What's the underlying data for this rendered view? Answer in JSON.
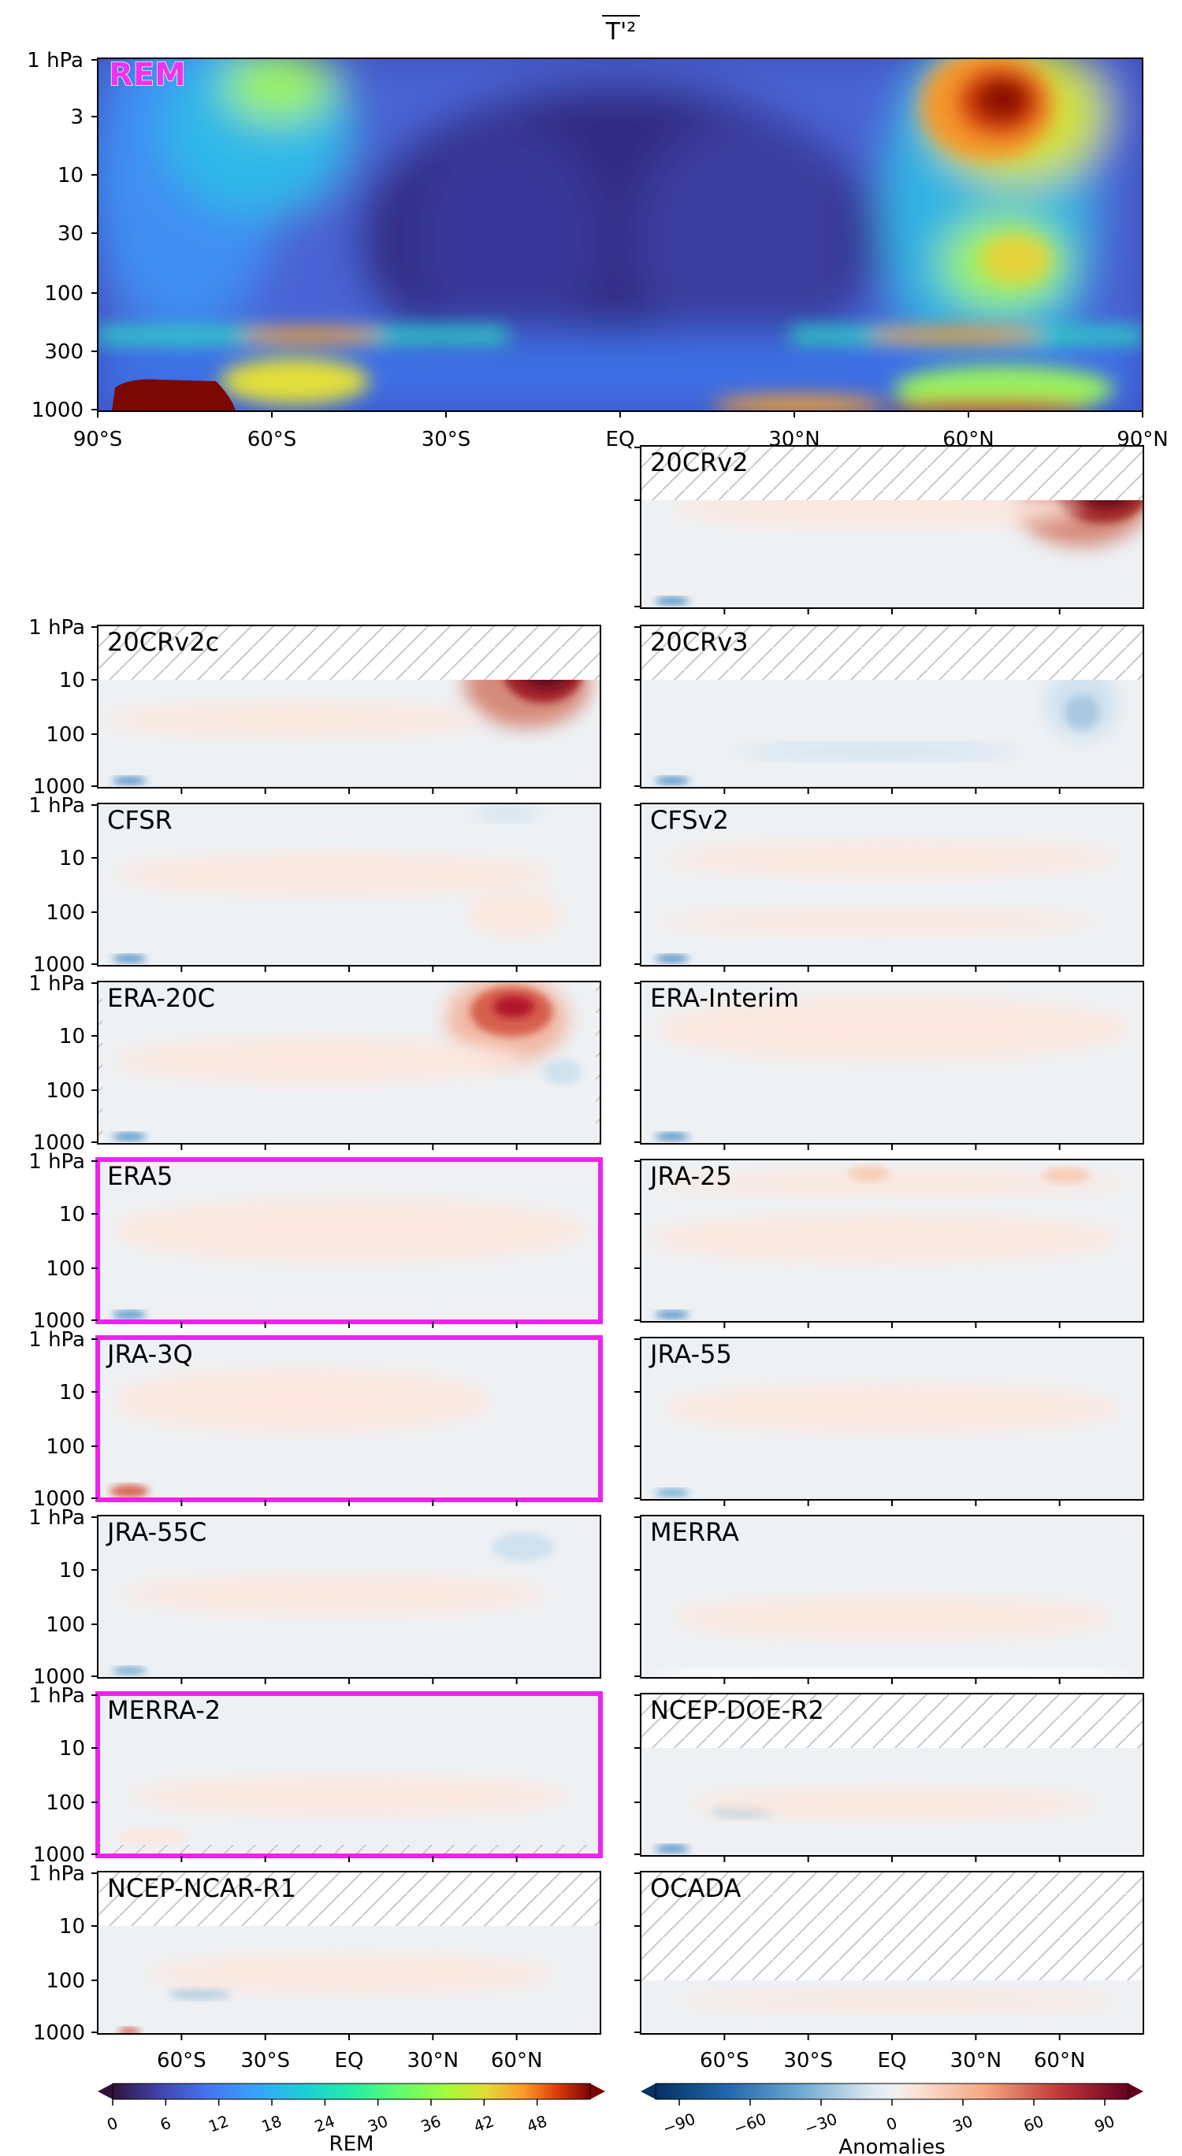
{
  "figure": {
    "title": "T'²"
  },
  "chart_data": [
    {
      "type": "heatmap",
      "label": "REM",
      "x_ticks": [
        "90°S",
        "60°S",
        "30°S",
        "EQ",
        "30°N",
        "60°N",
        "90°N"
      ],
      "y_ticks": [
        "1 hPa",
        "3",
        "10",
        "30",
        "100",
        "300",
        "1000"
      ],
      "y_scale": "log",
      "colorbar": {
        "label": "REM",
        "ticks": [
          "0",
          "6",
          "12",
          "18",
          "24",
          "30",
          "36",
          "42",
          "48"
        ],
        "range": [
          0,
          54
        ],
        "colormap": "turbo"
      }
    },
    {
      "type": "heatmap",
      "label": "20CRv2",
      "hatched_top": true,
      "highlighted": false
    },
    {
      "type": "heatmap",
      "label": "20CRv2c",
      "hatched_top": true,
      "highlighted": false
    },
    {
      "type": "heatmap",
      "label": "20CRv3",
      "hatched_top": true,
      "highlighted": false
    },
    {
      "type": "heatmap",
      "label": "CFSR",
      "highlighted": false
    },
    {
      "type": "heatmap",
      "label": "CFSv2",
      "highlighted": false
    },
    {
      "type": "heatmap",
      "label": "ERA-20C",
      "highlighted": false
    },
    {
      "type": "heatmap",
      "label": "ERA-Interim",
      "highlighted": false
    },
    {
      "type": "heatmap",
      "label": "ERA5",
      "highlighted": true
    },
    {
      "type": "heatmap",
      "label": "JRA-25",
      "highlighted": false
    },
    {
      "type": "heatmap",
      "label": "JRA-3Q",
      "highlighted": true
    },
    {
      "type": "heatmap",
      "label": "JRA-55",
      "highlighted": false
    },
    {
      "type": "heatmap",
      "label": "JRA-55C",
      "highlighted": false
    },
    {
      "type": "heatmap",
      "label": "MERRA",
      "highlighted": false
    },
    {
      "type": "heatmap",
      "label": "MERRA-2",
      "highlighted": true
    },
    {
      "type": "heatmap",
      "label": "NCEP-DOE-R2",
      "hatched_top": true,
      "highlighted": false
    },
    {
      "type": "heatmap",
      "label": "NCEP-NCAR-R1",
      "hatched_top": true,
      "highlighted": false
    },
    {
      "type": "heatmap",
      "label": "OCADA",
      "hatched_top": true,
      "highlighted": false,
      "colorbar": {
        "label": "Anomalies",
        "ticks": [
          "−90",
          "−60",
          "−30",
          "0",
          "30",
          "60",
          "90"
        ],
        "range": [
          -100,
          100
        ],
        "colormap": "RdBu_r"
      }
    }
  ],
  "small_panel": {
    "y_ticks": [
      "1 hPa",
      "10",
      "100",
      "1000"
    ],
    "x_ticks": [
      "60°S",
      "30°S",
      "EQ",
      "30°N",
      "60°N"
    ]
  },
  "colors": {
    "highlight": "#ee22ee",
    "rem_label": "#ee33ee",
    "hatch": "#c8c8c8",
    "anomaly_background": "#eef1f4",
    "anomaly_warm": "#fbe7de",
    "anomaly_cool": "#cfe1ef"
  }
}
